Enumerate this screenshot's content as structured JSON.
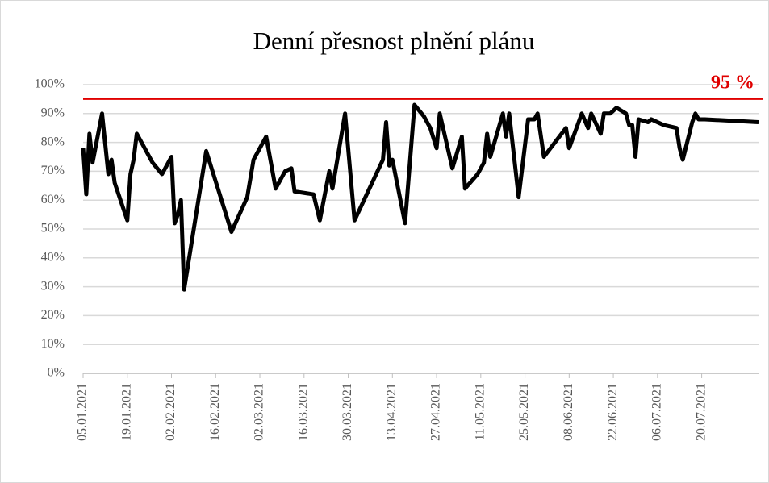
{
  "chart_data": {
    "type": "line",
    "title": "Denní přesnost plnění plánu",
    "color": "#000000",
    "grid": true,
    "x": [
      "05.01.2021",
      "06.01.2021",
      "07.01.2021",
      "08.01.2021",
      "11.01.2021",
      "13.01.2021",
      "14.01.2021",
      "15.01.2021",
      "19.01.2021",
      "20.01.2021",
      "21.01.2021",
      "22.01.2021",
      "27.01.2021",
      "30.01.2021",
      "02.02.2021",
      "03.02.2021",
      "04.02.2021",
      "05.02.2021",
      "06.02.2021",
      "13.02.2021",
      "21.02.2021",
      "26.02.2021",
      "28.02.2021",
      "04.03.2021",
      "07.03.2021",
      "10.03.2021",
      "12.03.2021",
      "13.03.2021",
      "19.03.2021",
      "21.03.2021",
      "24.03.2021",
      "25.03.2021",
      "29.03.2021",
      "01.04.2021",
      "10.04.2021",
      "11.04.2021",
      "12.04.2021",
      "13.04.2021",
      "17.04.2021",
      "20.04.2021",
      "23.04.2021",
      "25.04.2021",
      "27.04.2021",
      "28.04.2021",
      "02.05.2021",
      "05.05.2021",
      "06.05.2021",
      "10.05.2021",
      "12.05.2021",
      "13.05.2021",
      "14.05.2021",
      "18.05.2021",
      "19.05.2021",
      "20.05.2021",
      "23.05.2021",
      "26.05.2021",
      "28.05.2021",
      "29.05.2021",
      "31.05.2021",
      "07.06.2021",
      "08.06.2021",
      "12.06.2021",
      "14.06.2021",
      "15.06.2021",
      "18.06.2021",
      "19.06.2021",
      "21.06.2021",
      "23.06.2021",
      "26.06.2021",
      "27.06.2021",
      "28.06.2021",
      "29.06.2021",
      "30.06.2021",
      "03.07.2021",
      "04.07.2021",
      "06.07.2021",
      "08.07.2021",
      "12.07.2021",
      "13.07.2021",
      "14.07.2021",
      "17.07.2021",
      "18.07.2021",
      "19.07.2021",
      "21.07.2021",
      "07.08.2021"
    ],
    "values": [
      78,
      62,
      83,
      73,
      90,
      69,
      74,
      66,
      53,
      69,
      74,
      83,
      73,
      69,
      75,
      52,
      55,
      60,
      29,
      77,
      49,
      61,
      74,
      82,
      64,
      70,
      71,
      63,
      62,
      53,
      70,
      64,
      90,
      53,
      74,
      87,
      72,
      74,
      52,
      93,
      89,
      85,
      78,
      90,
      71,
      82,
      64,
      69,
      73,
      83,
      75,
      90,
      82,
      90,
      61,
      88,
      88,
      90,
      75,
      85,
      78,
      90,
      85,
      90,
      83,
      90,
      90,
      92,
      90,
      86,
      86,
      75,
      88,
      87,
      88,
      87,
      86,
      85,
      78,
      74,
      87,
      90,
      88,
      88,
      87
    ],
    "xlim": [
      "05.01.2021",
      "07.08.2021"
    ],
    "xticks": [
      "05.01.2021",
      "19.01.2021",
      "02.02.2021",
      "16.02.2021",
      "02.03.2021",
      "16.03.2021",
      "30.03.2021",
      "13.04.2021",
      "27.04.2021",
      "11.05.2021",
      "25.05.2021",
      "08.06.2021",
      "22.06.2021",
      "06.07.2021",
      "20.07.2021"
    ],
    "ylim": [
      0,
      100
    ],
    "yticks": [
      {
        "value": 0,
        "label": "0%"
      },
      {
        "value": 10,
        "label": "10%"
      },
      {
        "value": 20,
        "label": "20%"
      },
      {
        "value": 30,
        "label": "30%"
      },
      {
        "value": 40,
        "label": "40%"
      },
      {
        "value": 50,
        "label": "50%"
      },
      {
        "value": 60,
        "label": "60%"
      },
      {
        "value": 70,
        "label": "70%"
      },
      {
        "value": 80,
        "label": "80%"
      },
      {
        "value": 90,
        "label": "90%"
      },
      {
        "value": 100,
        "label": "100%"
      }
    ],
    "reference_line": {
      "value": 95,
      "label": "95 %",
      "color": "#e00000"
    }
  }
}
